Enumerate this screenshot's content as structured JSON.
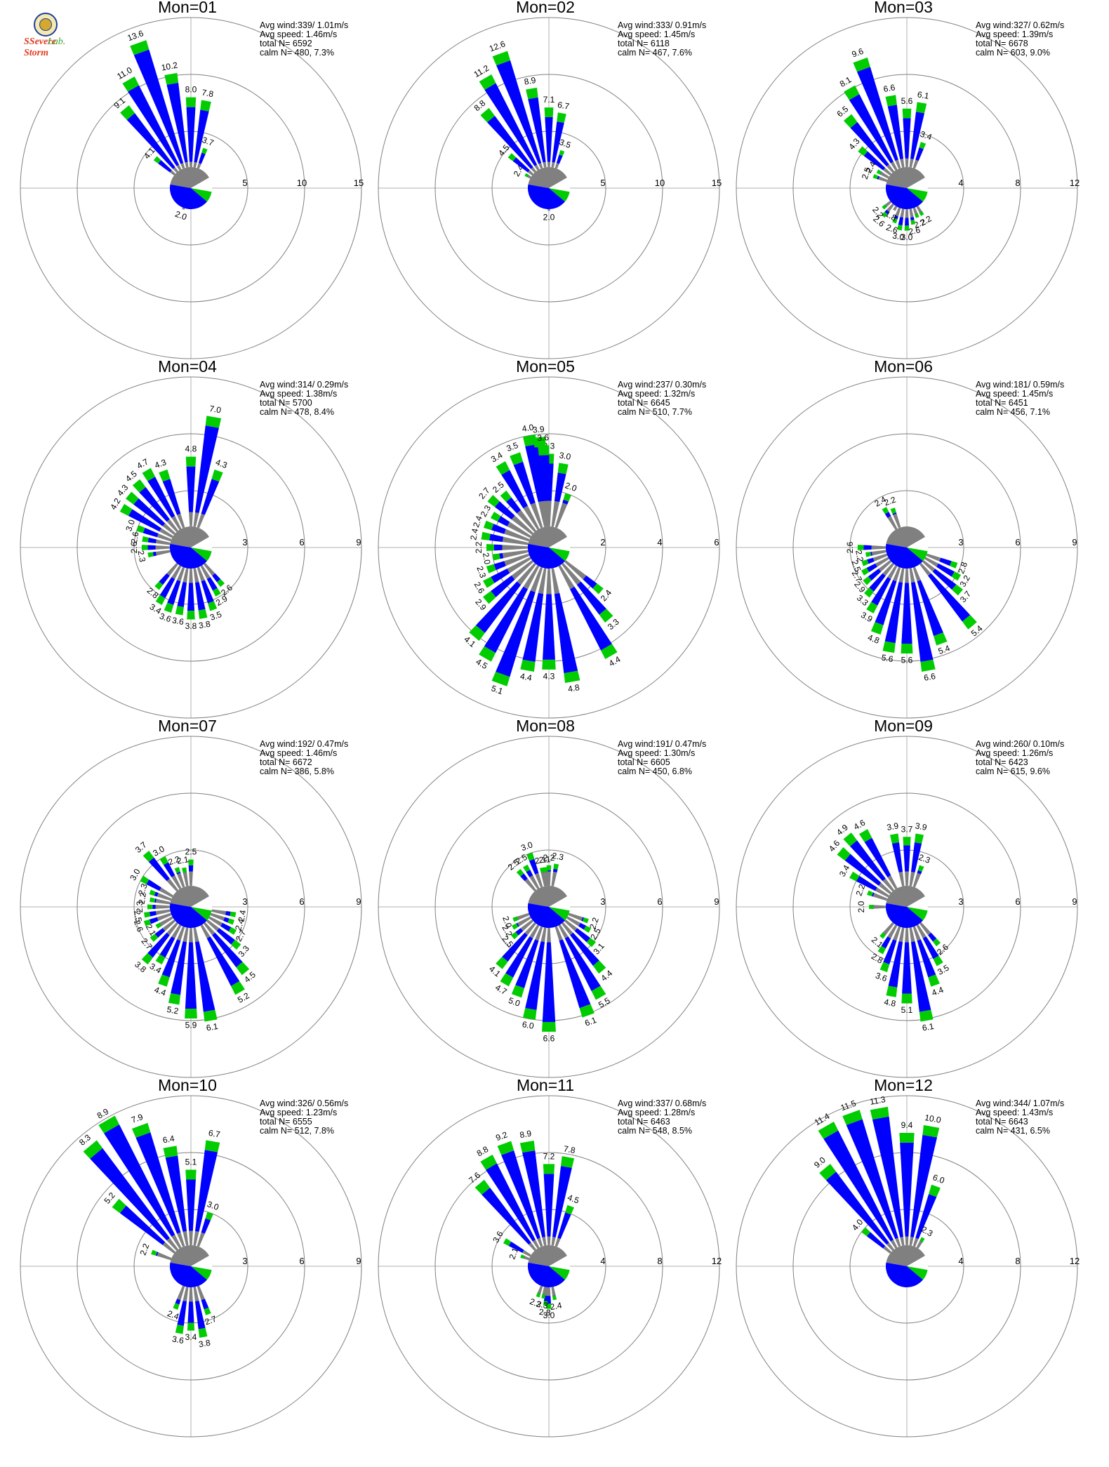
{
  "logo": {
    "word1": "SSevere Storm",
    "word2": "Lab."
  },
  "colors": {
    "light": "#808080",
    "moderate": "#0000ff",
    "strong": "#00cc00",
    "ring": "#808080",
    "axis": "#b0b0b0"
  },
  "chart_data": [
    {
      "type": "rose",
      "title": "Mon=01",
      "stats": [
        "Avg wind:339/ 1.01m/s",
        "Avg speed: 1.46m/s",
        "total N=      6592",
        "calm N=    480,   7.3%"
      ],
      "rings": [
        5,
        10,
        15
      ],
      "dominant": [
        0,
        1
      ],
      "labels": [
        {
          "dir": 0,
          "value": 8.0
        },
        {
          "dir": 10,
          "value": 7.8
        },
        {
          "dir": 20,
          "value": 3.7
        },
        {
          "dir": 200,
          "value": 2.0
        },
        {
          "dir": 310,
          "value": 4.1
        },
        {
          "dir": 320,
          "value": 9.1
        },
        {
          "dir": 330,
          "value": 11.0
        },
        {
          "dir": 340,
          "value": 13.6
        },
        {
          "dir": 350,
          "value": 10.2
        }
      ]
    },
    {
      "type": "rose",
      "title": "Mon=02",
      "stats": [
        "Avg wind:333/ 0.91m/s",
        "Avg speed: 1.45m/s",
        "total N=      6118",
        "calm N=    467,   7.6%"
      ],
      "rings": [
        5,
        10,
        15
      ],
      "dominant": [
        0,
        1
      ],
      "labels": [
        {
          "dir": 0,
          "value": 7.1
        },
        {
          "dir": 10,
          "value": 6.7
        },
        {
          "dir": 20,
          "value": 3.5
        },
        {
          "dir": 180,
          "value": 2.0
        },
        {
          "dir": 300,
          "value": 2.4
        },
        {
          "dir": 310,
          "value": 4.5
        },
        {
          "dir": 320,
          "value": 8.8
        },
        {
          "dir": 330,
          "value": 11.2
        },
        {
          "dir": 340,
          "value": 12.6
        },
        {
          "dir": 350,
          "value": 8.9
        }
      ]
    },
    {
      "type": "rose",
      "title": "Mon=03",
      "stats": [
        "Avg wind:327/ 0.62m/s",
        "Avg speed: 1.39m/s",
        "total N=      6678",
        "calm N=    603,   9.0%"
      ],
      "rings": [
        4,
        8,
        12
      ],
      "dominant": [
        0,
        1
      ],
      "labels": [
        {
          "dir": 0,
          "value": 5.6
        },
        {
          "dir": 10,
          "value": 6.1
        },
        {
          "dir": 20,
          "value": 3.4
        },
        {
          "dir": 150,
          "value": 2.2
        },
        {
          "dir": 160,
          "value": 2.2
        },
        {
          "dir": 170,
          "value": 2.6
        },
        {
          "dir": 180,
          "value": 3.0
        },
        {
          "dir": 190,
          "value": 3.0
        },
        {
          "dir": 200,
          "value": 2.6
        },
        {
          "dir": 210,
          "value": 1.8
        },
        {
          "dir": 220,
          "value": 2.6
        },
        {
          "dir": 230,
          "value": 2.2
        },
        {
          "dir": 290,
          "value": 2.5
        },
        {
          "dir": 300,
          "value": 2.4
        },
        {
          "dir": 310,
          "value": 4.3
        },
        {
          "dir": 320,
          "value": 6.5
        },
        {
          "dir": 330,
          "value": 8.1
        },
        {
          "dir": 340,
          "value": 9.6
        },
        {
          "dir": 350,
          "value": 6.6
        }
      ]
    },
    {
      "type": "rose",
      "title": "Mon=04",
      "stats": [
        "Avg wind:314/ 0.29m/s",
        "Avg speed: 1.38m/s",
        "total N=      5700",
        "calm N=    478,   8.4%"
      ],
      "rings": [
        3,
        6,
        9
      ],
      "dominant": [
        0,
        1
      ],
      "labels": [
        {
          "dir": 0,
          "value": 4.8
        },
        {
          "dir": 10,
          "value": 7.0
        },
        {
          "dir": 20,
          "value": 4.3
        },
        {
          "dir": 140,
          "value": 2.6
        },
        {
          "dir": 150,
          "value": 2.9
        },
        {
          "dir": 160,
          "value": 3.5
        },
        {
          "dir": 170,
          "value": 3.8
        },
        {
          "dir": 180,
          "value": 3.8
        },
        {
          "dir": 190,
          "value": 3.6
        },
        {
          "dir": 200,
          "value": 3.6
        },
        {
          "dir": 210,
          "value": 3.4
        },
        {
          "dir": 220,
          "value": 2.8
        },
        {
          "dir": 260,
          "value": 2.3
        },
        {
          "dir": 270,
          "value": 2.6
        },
        {
          "dir": 280,
          "value": 2.6
        },
        {
          "dir": 290,
          "value": 3.0
        },
        {
          "dir": 300,
          "value": 4.2
        },
        {
          "dir": 310,
          "value": 4.3
        },
        {
          "dir": 320,
          "value": 4.5
        },
        {
          "dir": 330,
          "value": 4.7
        },
        {
          "dir": 340,
          "value": 4.3
        }
      ]
    },
    {
      "type": "rose",
      "title": "Mon=05",
      "stats": [
        "Avg wind:237/ 0.30m/s",
        "Avg speed: 1.32m/s",
        "total N=      6645",
        "calm N=    510,   7.7%"
      ],
      "rings": [
        2,
        4,
        6
      ],
      "dominant": [
        0,
        1
      ],
      "labels": [
        {
          "dir": 0,
          "value": 3.3
        },
        {
          "dir": 10,
          "value": 3.0
        },
        {
          "dir": 20,
          "value": 2.0
        },
        {
          "dir": 130,
          "value": 2.4
        },
        {
          "dir": 140,
          "value": 3.3
        },
        {
          "dir": 150,
          "value": 4.4
        },
        {
          "dir": 170,
          "value": 4.8
        },
        {
          "dir": 180,
          "value": 4.3
        },
        {
          "dir": 190,
          "value": 4.4
        },
        {
          "dir": 200,
          "value": 5.1
        },
        {
          "dir": 210,
          "value": 4.5
        },
        {
          "dir": 220,
          "value": 4.1
        },
        {
          "dir": 230,
          "value": 2.9
        },
        {
          "dir": 240,
          "value": 2.6
        },
        {
          "dir": 250,
          "value": 2.3
        },
        {
          "dir": 260,
          "value": 2.0
        },
        {
          "dir": 270,
          "value": 2.2
        },
        {
          "dir": 280,
          "value": 2.4
        },
        {
          "dir": 290,
          "value": 2.4
        },
        {
          "dir": 300,
          "value": 2.3
        },
        {
          "dir": 310,
          "value": 2.7
        },
        {
          "dir": 320,
          "value": 2.5
        },
        {
          "dir": 330,
          "value": 3.4
        },
        {
          "dir": 340,
          "value": 3.5
        },
        {
          "dir": 350,
          "value": 4.0
        },
        {
          "dir": 355,
          "value": 3.9
        },
        {
          "dir": 357,
          "value": 3.6
        }
      ]
    },
    {
      "type": "rose",
      "title": "Mon=06",
      "stats": [
        "Avg wind:181/ 0.59m/s",
        "Avg speed: 1.45m/s",
        "total N=      6451",
        "calm N=    456,   7.1%"
      ],
      "rings": [
        3,
        6,
        9
      ],
      "dominant": [
        0,
        1
      ],
      "labels": [
        {
          "dir": 110,
          "value": 2.8
        },
        {
          "dir": 120,
          "value": 3.2
        },
        {
          "dir": 130,
          "value": 3.7
        },
        {
          "dir": 140,
          "value": 5.4
        },
        {
          "dir": 160,
          "value": 5.4
        },
        {
          "dir": 170,
          "value": 6.6
        },
        {
          "dir": 180,
          "value": 5.6
        },
        {
          "dir": 190,
          "value": 5.6
        },
        {
          "dir": 200,
          "value": 4.8
        },
        {
          "dir": 210,
          "value": 3.9
        },
        {
          "dir": 220,
          "value": 3.3
        },
        {
          "dir": 230,
          "value": 2.9
        },
        {
          "dir": 240,
          "value": 2.7
        },
        {
          "dir": 250,
          "value": 2.5
        },
        {
          "dir": 260,
          "value": 2.2
        },
        {
          "dir": 270,
          "value": 2.6
        },
        {
          "dir": 330,
          "value": 2.4
        },
        {
          "dir": 340,
          "value": 2.2
        }
      ]
    },
    {
      "type": "rose",
      "title": "Mon=07",
      "stats": [
        "Avg wind:192/ 0.47m/s",
        "Avg speed: 1.46m/s",
        "total N=      6672",
        "calm N=    386,   5.8%"
      ],
      "rings": [
        3,
        6,
        9
      ],
      "dominant": [
        0,
        1
      ],
      "labels": [
        {
          "dir": 0,
          "value": 2.5
        },
        {
          "dir": 100,
          "value": 2.4
        },
        {
          "dir": 110,
          "value": 2.4
        },
        {
          "dir": 120,
          "value": 2.7
        },
        {
          "dir": 130,
          "value": 3.3
        },
        {
          "dir": 140,
          "value": 4.5
        },
        {
          "dir": 150,
          "value": 5.2
        },
        {
          "dir": 170,
          "value": 6.1
        },
        {
          "dir": 180,
          "value": 5.9
        },
        {
          "dir": 190,
          "value": 5.2
        },
        {
          "dir": 200,
          "value": 4.4
        },
        {
          "dir": 210,
          "value": 3.4
        },
        {
          "dir": 220,
          "value": 3.8
        },
        {
          "dir": 230,
          "value": 2.7
        },
        {
          "dir": 240,
          "value": 2.1
        },
        {
          "dir": 250,
          "value": 2.6
        },
        {
          "dir": 260,
          "value": 2.5
        },
        {
          "dir": 270,
          "value": 2.3
        },
        {
          "dir": 280,
          "value": 2.2
        },
        {
          "dir": 290,
          "value": 2.3
        },
        {
          "dir": 300,
          "value": 3.0
        },
        {
          "dir": 320,
          "value": 3.7
        },
        {
          "dir": 330,
          "value": 3.0
        },
        {
          "dir": 340,
          "value": 2.2
        },
        {
          "dir": 350,
          "value": 2.1
        }
      ]
    },
    {
      "type": "rose",
      "title": "Mon=08",
      "stats": [
        "Avg wind:191/ 0.47m/s",
        "Avg speed: 1.30m/s",
        "total N=      6605",
        "calm N=    450,   6.8%"
      ],
      "rings": [
        3,
        6,
        9
      ],
      "dominant": [
        0,
        1
      ],
      "labels": [
        {
          "dir": 0,
          "value": 2.2
        },
        {
          "dir": 10,
          "value": 2.3
        },
        {
          "dir": 110,
          "value": 2.2
        },
        {
          "dir": 120,
          "value": 2.5
        },
        {
          "dir": 130,
          "value": 3.1
        },
        {
          "dir": 140,
          "value": 4.4
        },
        {
          "dir": 150,
          "value": 5.5
        },
        {
          "dir": 160,
          "value": 6.1
        },
        {
          "dir": 180,
          "value": 6.6
        },
        {
          "dir": 190,
          "value": 6.0
        },
        {
          "dir": 200,
          "value": 5.0
        },
        {
          "dir": 210,
          "value": 4.7
        },
        {
          "dir": 220,
          "value": 4.1
        },
        {
          "dir": 230,
          "value": 2.5
        },
        {
          "dir": 240,
          "value": 2.2
        },
        {
          "dir": 250,
          "value": 2.0
        },
        {
          "dir": 320,
          "value": 2.5
        },
        {
          "dir": 330,
          "value": 2.5
        },
        {
          "dir": 340,
          "value": 3.0
        },
        {
          "dir": 350,
          "value": 2.1
        },
        {
          "dir": 355,
          "value": 2.1
        }
      ]
    },
    {
      "type": "rose",
      "title": "Mon=09",
      "stats": [
        "Avg wind:260/ 0.10m/s",
        "Avg speed: 1.26m/s",
        "total N=      6423",
        "calm N=    615,   9.6%"
      ],
      "rings": [
        3,
        6,
        9
      ],
      "dominant": [
        0,
        1
      ],
      "labels": [
        {
          "dir": 0,
          "value": 3.7
        },
        {
          "dir": 10,
          "value": 3.9
        },
        {
          "dir": 20,
          "value": 2.3
        },
        {
          "dir": 140,
          "value": 2.6
        },
        {
          "dir": 150,
          "value": 3.5
        },
        {
          "dir": 160,
          "value": 4.4
        },
        {
          "dir": 170,
          "value": 6.1
        },
        {
          "dir": 180,
          "value": 5.1
        },
        {
          "dir": 190,
          "value": 4.8
        },
        {
          "dir": 200,
          "value": 3.6
        },
        {
          "dir": 210,
          "value": 2.8
        },
        {
          "dir": 220,
          "value": 2.1
        },
        {
          "dir": 270,
          "value": 2.0
        },
        {
          "dir": 290,
          "value": 2.2
        },
        {
          "dir": 300,
          "value": 3.4
        },
        {
          "dir": 310,
          "value": 4.6
        },
        {
          "dir": 320,
          "value": 4.9
        },
        {
          "dir": 330,
          "value": 4.6
        },
        {
          "dir": 350,
          "value": 3.9
        }
      ]
    },
    {
      "type": "rose",
      "title": "Mon=10",
      "stats": [
        "Avg wind:326/ 0.56m/s",
        "Avg speed: 1.23m/s",
        "total N=      6555",
        "calm N=    512,   7.8%"
      ],
      "rings": [
        3,
        6,
        9
      ],
      "dominant": [
        0,
        1
      ],
      "labels": [
        {
          "dir": 0,
          "value": 5.1
        },
        {
          "dir": 10,
          "value": 6.7
        },
        {
          "dir": 20,
          "value": 3.0
        },
        {
          "dir": 160,
          "value": 2.7
        },
        {
          "dir": 170,
          "value": 3.8
        },
        {
          "dir": 180,
          "value": 3.4
        },
        {
          "dir": 190,
          "value": 3.6
        },
        {
          "dir": 200,
          "value": 2.4
        },
        {
          "dir": 290,
          "value": 2.2
        },
        {
          "dir": 310,
          "value": 5.2
        },
        {
          "dir": 320,
          "value": 8.3
        },
        {
          "dir": 330,
          "value": 8.9
        },
        {
          "dir": 340,
          "value": 7.9
        },
        {
          "dir": 350,
          "value": 6.4
        }
      ]
    },
    {
      "type": "rose",
      "title": "Mon=11",
      "stats": [
        "Avg wind:337/ 0.68m/s",
        "Avg speed: 1.28m/s",
        "total N=      6463",
        "calm N=    548,   8.5%"
      ],
      "rings": [
        4,
        8,
        12
      ],
      "dominant": [
        0,
        1
      ],
      "labels": [
        {
          "dir": 0,
          "value": 7.2
        },
        {
          "dir": 10,
          "value": 7.8
        },
        {
          "dir": 20,
          "value": 4.5
        },
        {
          "dir": 170,
          "value": 2.4
        },
        {
          "dir": 180,
          "value": 3.0
        },
        {
          "dir": 185,
          "value": 2.8
        },
        {
          "dir": 190,
          "value": 2.3
        },
        {
          "dir": 200,
          "value": 2.3
        },
        {
          "dir": 290,
          "value": 2.1
        },
        {
          "dir": 300,
          "value": 3.6
        },
        {
          "dir": 320,
          "value": 7.6
        },
        {
          "dir": 330,
          "value": 8.8
        },
        {
          "dir": 340,
          "value": 9.2
        },
        {
          "dir": 350,
          "value": 8.9
        }
      ]
    },
    {
      "type": "rose",
      "title": "Mon=12",
      "stats": [
        "Avg wind:344/ 1.07m/s",
        "Avg speed: 1.43m/s",
        "total N=      6643",
        "calm N=    431,   6.5%"
      ],
      "rings": [
        4,
        8,
        12
      ],
      "dominant": [
        0,
        1
      ],
      "labels": [
        {
          "dir": 0,
          "value": 9.4
        },
        {
          "dir": 10,
          "value": 10.0
        },
        {
          "dir": 20,
          "value": 6.0
        },
        {
          "dir": 30,
          "value": 2.3
        },
        {
          "dir": 310,
          "value": 4.0
        },
        {
          "dir": 320,
          "value": 9.0
        },
        {
          "dir": 330,
          "value": 11.4
        },
        {
          "dir": 340,
          "value": 11.5
        },
        {
          "dir": 350,
          "value": 11.3
        }
      ]
    }
  ]
}
